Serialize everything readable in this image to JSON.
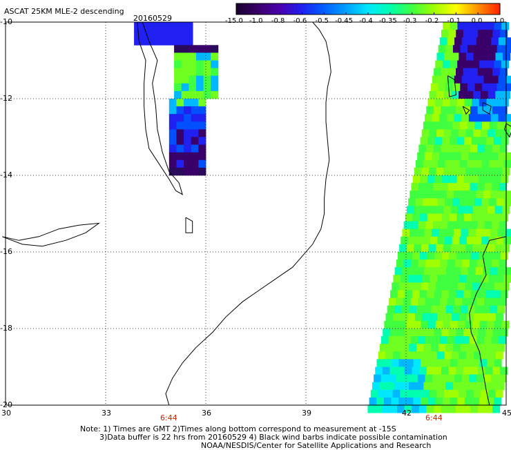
{
  "header": {
    "product": "ASCAT 25KM MLE-2 descending",
    "date": "20160529"
  },
  "colorbar": {
    "labels": [
      "-15.0",
      "-1.0",
      "-0.8",
      "-0.6",
      "-0.5",
      "-0.45",
      "-0.4",
      "-0.35",
      "-0.3",
      "-0.2",
      "-0.1",
      "0.0",
      "1.0"
    ],
    "colors": [
      "#1a0030",
      "#3a006a",
      "#4a00b0",
      "#2020f0",
      "#0060ff",
      "#00a0ff",
      "#00e8ff",
      "#00ffb0",
      "#40ff40",
      "#a0ff00",
      "#ffff00",
      "#ff9000",
      "#ff2000"
    ]
  },
  "map": {
    "lon_ticks": [
      "30",
      "33",
      "36",
      "39",
      "42",
      "45"
    ],
    "lat_ticks": [
      "-10",
      "-12",
      "-14",
      "-16",
      "-18",
      "-20"
    ],
    "pass_times": [
      "6:44",
      "6:44"
    ]
  },
  "notes": {
    "line1": "Note: 1) Times are GMT 2)Times along bottom correspond to measurement at -15S",
    "line2": "3)Data buffer is 22 hrs from 20160529 4) Black wind barbs indicate possible contamination",
    "line3": "NOAA/NESDIS/Center for Satellite Applications and Research"
  }
}
